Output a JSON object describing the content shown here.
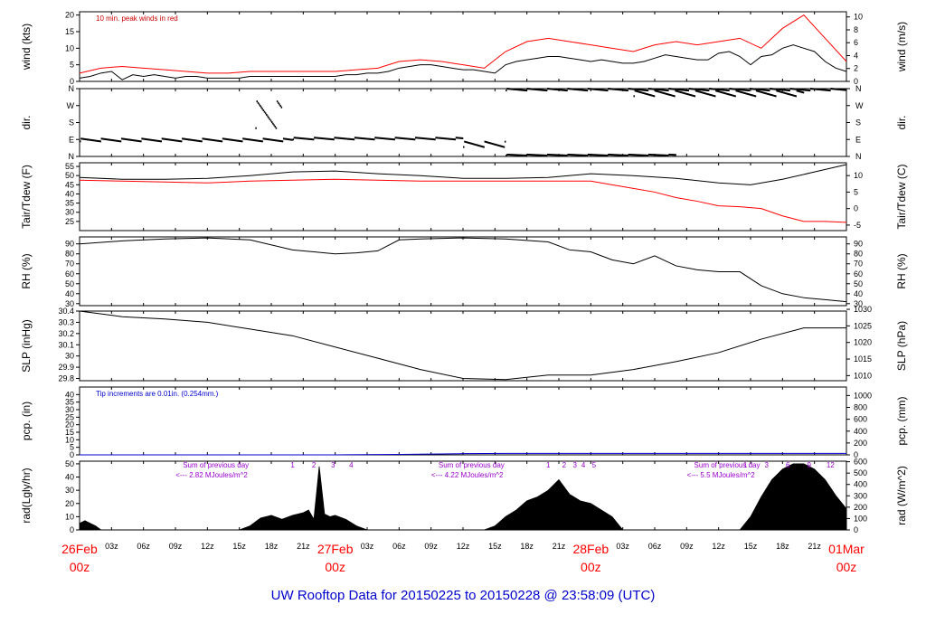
{
  "title": "UW Rooftop Data for 20150225  to  20150228 @ 23:58:09  (UTC)",
  "colors": {
    "frame": "#000000",
    "series_black": "#000000",
    "series_red": "#ff0000",
    "series_blue": "#0000cc",
    "annotation_red": "#cc0000",
    "annotation_purple": "#9900cc",
    "date_red": "#ff0000",
    "title_blue": "#0000cc"
  },
  "time_axis": {
    "range_hours": [
      0,
      72
    ],
    "hour_ticks": [
      {
        "h": 3,
        "label": "03z"
      },
      {
        "h": 6,
        "label": "06z"
      },
      {
        "h": 9,
        "label": "09z"
      },
      {
        "h": 12,
        "label": "12z"
      },
      {
        "h": 15,
        "label": "15z"
      },
      {
        "h": 18,
        "label": "18z"
      },
      {
        "h": 21,
        "label": "21z"
      },
      {
        "h": 27,
        "label": "03z"
      },
      {
        "h": 30,
        "label": "06z"
      },
      {
        "h": 33,
        "label": "09z"
      },
      {
        "h": 36,
        "label": "12z"
      },
      {
        "h": 39,
        "label": "15z"
      },
      {
        "h": 42,
        "label": "18z"
      },
      {
        "h": 45,
        "label": "21z"
      },
      {
        "h": 51,
        "label": "03z"
      },
      {
        "h": 54,
        "label": "06z"
      },
      {
        "h": 57,
        "label": "09z"
      },
      {
        "h": 60,
        "label": "12z"
      },
      {
        "h": 63,
        "label": "15z"
      },
      {
        "h": 66,
        "label": "18z"
      },
      {
        "h": 69,
        "label": "21z"
      }
    ],
    "day_labels": [
      {
        "h": 0,
        "date": "26Feb",
        "time": "00z"
      },
      {
        "h": 24,
        "date": "27Feb",
        "time": "00z"
      },
      {
        "h": 48,
        "date": "28Feb",
        "time": "00z"
      },
      {
        "h": 72,
        "date": "01Mar",
        "time": "00z"
      }
    ]
  },
  "chart_data": [
    {
      "panel": "wind",
      "type": "line",
      "ylabel_left": "wind (kts)",
      "ylabel_right": "wind (m/s)",
      "ylim": [
        0,
        21
      ],
      "ticks_left": [
        0,
        5,
        10,
        15,
        20
      ],
      "ticks_right": [
        0,
        2,
        4,
        6,
        8,
        10
      ],
      "right_scale_factor": 0.5144,
      "annotation": "10 min. peak winds in red",
      "series": [
        {
          "name": "",
          "color": "black",
          "x": [
            0,
            1,
            2,
            3,
            4,
            5,
            6,
            7,
            8,
            9,
            10,
            11,
            12,
            13,
            14,
            15,
            16,
            17,
            18,
            19,
            20,
            21,
            22,
            23,
            24,
            25,
            26,
            27,
            28,
            29,
            30,
            31,
            32,
            33,
            34,
            35,
            36,
            37,
            38,
            39,
            40,
            41,
            42,
            43,
            44,
            45,
            46,
            47,
            48,
            49,
            50,
            51,
            52,
            53,
            54,
            55,
            56,
            57,
            58,
            59,
            60,
            61,
            62,
            63,
            64,
            65,
            66,
            67,
            68,
            69,
            70,
            71,
            72
          ],
          "y": [
            1,
            1.5,
            2.5,
            3,
            0.5,
            2,
            1.5,
            2,
            1.5,
            1,
            1.5,
            1.5,
            1,
            1,
            1,
            1,
            1.5,
            1.5,
            1.5,
            1.5,
            1.5,
            1.5,
            1.5,
            1.5,
            1.5,
            2,
            2,
            2.5,
            2.5,
            3,
            4,
            4.5,
            5,
            5,
            4.5,
            4,
            3.5,
            3.5,
            3,
            2.5,
            5,
            6,
            6.5,
            7,
            7.5,
            7.5,
            7,
            6.5,
            6,
            6.5,
            6,
            5.5,
            5.5,
            6,
            7,
            8,
            7.5,
            7,
            6.5,
            6.5,
            8.5,
            9,
            7.5,
            5,
            7.5,
            8,
            10,
            11,
            10,
            9,
            6,
            4,
            3
          ]
        },
        {
          "name": "",
          "color": "red",
          "x": [
            0,
            2,
            4,
            6,
            8,
            10,
            12,
            14,
            16,
            18,
            20,
            22,
            24,
            26,
            28,
            30,
            32,
            34,
            36,
            38,
            40,
            42,
            44,
            46,
            48,
            50,
            52,
            54,
            56,
            58,
            60,
            62,
            64,
            66,
            68,
            70,
            72
          ],
          "y": [
            2.5,
            4,
            4.5,
            4,
            3.5,
            3,
            2.5,
            2.5,
            3,
            3,
            3,
            3,
            3,
            3.5,
            4,
            6,
            6.5,
            6,
            5,
            4,
            9,
            12,
            13,
            12,
            11,
            10,
            9,
            11,
            12,
            11,
            12,
            13,
            10,
            16,
            20,
            13,
            6
          ]
        }
      ]
    },
    {
      "panel": "dir",
      "type": "scatter",
      "ylabel_left": "dir.",
      "ylabel_right": "dir.",
      "ylim": [
        0,
        360
      ],
      "tick_labels": [
        "N",
        "E",
        "S",
        "W",
        "N"
      ],
      "tick_values": [
        0,
        90,
        180,
        270,
        360
      ],
      "series": [
        {
          "name": "",
          "color": "black",
          "segments": [
            {
              "x": [
                0,
                20
              ],
              "y": [
                80,
                95
              ]
            },
            {
              "x": [
                16.5,
                19
              ],
              "y": [
                150,
                300
              ]
            },
            {
              "x": [
                20,
                36
              ],
              "y": [
                90,
                100
              ]
            },
            {
              "x": [
                36,
                40
              ],
              "y": [
                50,
                80
              ]
            },
            {
              "x": [
                40,
                56
              ],
              "y": [
                5,
                10
              ]
            },
            {
              "x": [
                40,
                72
              ],
              "y": [
                350,
                360
              ]
            },
            {
              "x": [
                52,
                68
              ],
              "y": [
                320,
                350
              ]
            }
          ]
        }
      ]
    },
    {
      "panel": "temp",
      "type": "line",
      "ylabel_left": "Tair/Tdew (F)",
      "ylabel_right": "Tair/Tdew (C)",
      "ylim": [
        20,
        57
      ],
      "ticks_left": [
        25,
        30,
        35,
        40,
        45,
        50,
        55
      ],
      "ticks_right": [
        -5,
        0,
        5,
        10
      ],
      "series": [
        {
          "name": "",
          "color": "black",
          "x": [
            0,
            4,
            8,
            12,
            16,
            20,
            24,
            28,
            32,
            36,
            40,
            44,
            48,
            52,
            56,
            60,
            63,
            66,
            69,
            72
          ],
          "y": [
            49,
            48,
            48,
            48.5,
            50,
            52,
            52.5,
            51,
            50,
            48.5,
            48.5,
            49,
            51,
            50,
            48.5,
            46,
            45,
            48,
            52,
            56
          ]
        },
        {
          "name": "",
          "color": "red",
          "x": [
            0,
            4,
            8,
            12,
            16,
            20,
            24,
            28,
            32,
            36,
            40,
            44,
            48,
            50,
            52,
            54,
            56,
            58,
            60,
            62,
            64,
            66,
            68,
            70,
            72
          ],
          "y": [
            47.5,
            47,
            46.5,
            46,
            47,
            47.5,
            48,
            47.5,
            47,
            47,
            47,
            47,
            47,
            45,
            43,
            41,
            38,
            36,
            33.5,
            33,
            32,
            28,
            25,
            25,
            24.5
          ]
        }
      ]
    },
    {
      "panel": "rh",
      "type": "line",
      "ylabel_left": "RH (%)",
      "ylabel_right": "RH (%)",
      "ylim": [
        28,
        97
      ],
      "ticks_left": [
        30,
        40,
        50,
        60,
        70,
        80,
        90
      ],
      "ticks_right": [
        30,
        40,
        50,
        60,
        70,
        80,
        90
      ],
      "series": [
        {
          "name": "",
          "color": "black",
          "x": [
            0,
            4,
            8,
            12,
            16,
            20,
            22,
            24,
            26,
            28,
            30,
            32,
            36,
            40,
            44,
            46,
            48,
            50,
            52,
            54,
            56,
            58,
            60,
            62,
            64,
            66,
            68,
            70,
            72
          ],
          "y": [
            90,
            93,
            95,
            96,
            94,
            84,
            82,
            80,
            81,
            83,
            94,
            95,
            96,
            95,
            92,
            84,
            82,
            74,
            70,
            78,
            68,
            64,
            62,
            62,
            48,
            40,
            36,
            34,
            32
          ]
        }
      ]
    },
    {
      "panel": "slp",
      "type": "line",
      "ylabel_left": "SLP (inHg)",
      "ylabel_right": "SLP (hPa)",
      "ylim": [
        29.78,
        30.4
      ],
      "ticks_left": [
        29.8,
        29.9,
        30.0,
        30.1,
        30.2,
        30.3,
        30.4
      ],
      "ticks_right": [
        1010,
        1015,
        1020,
        1025,
        1030
      ],
      "series": [
        {
          "name": "",
          "color": "black",
          "x": [
            0,
            4,
            8,
            12,
            16,
            20,
            24,
            28,
            32,
            36,
            40,
            44,
            48,
            52,
            56,
            60,
            64,
            68,
            72
          ],
          "y": [
            30.4,
            30.35,
            30.33,
            30.3,
            30.24,
            30.18,
            30.08,
            29.98,
            29.88,
            29.8,
            29.79,
            29.83,
            29.83,
            29.88,
            29.95,
            30.03,
            30.15,
            30.25,
            30.25
          ]
        }
      ]
    },
    {
      "panel": "pcp",
      "type": "line",
      "ylabel_left": "pcp. (in)",
      "ylabel_right": "pcp. (mm)",
      "ylim": [
        0,
        45
      ],
      "ticks_left": [
        0,
        5,
        10,
        15,
        20,
        25,
        30,
        35,
        40
      ],
      "ticks_right": [
        0,
        200,
        400,
        600,
        800,
        1000
      ],
      "annotation": "Tip increments are 0.01in. (0.254mm.)",
      "series": [
        {
          "name": "",
          "color": "blue",
          "x": [
            0,
            24,
            30,
            36,
            40,
            48,
            72
          ],
          "y": [
            0,
            0,
            0.3,
            0.8,
            1.0,
            1.0,
            1.0
          ]
        }
      ]
    },
    {
      "panel": "rad",
      "type": "area",
      "ylabel_left": "rad(Lgly/hr)",
      "ylabel_right": "rad (W/m^2)",
      "ylim": [
        0,
        52
      ],
      "ticks_left": [
        0,
        10,
        20,
        30,
        40,
        50
      ],
      "ticks_right": [
        0,
        100,
        200,
        300,
        400,
        500,
        600
      ],
      "series": [
        {
          "name": "",
          "color": "black",
          "x": [
            0,
            0.5,
            1,
            1.5,
            2,
            15,
            16,
            17,
            18,
            19,
            20,
            21,
            21.5,
            22,
            22.5,
            23,
            23.5,
            24,
            25,
            26,
            27,
            38,
            39,
            40,
            41,
            42,
            43,
            44,
            45,
            46,
            47,
            48,
            49,
            50,
            51,
            62,
            63,
            64,
            65,
            66,
            67,
            68,
            69,
            70,
            71,
            72
          ],
          "y": [
            5,
            7,
            5,
            3,
            0,
            0,
            3,
            9,
            11,
            8,
            11,
            13,
            15,
            8,
            48,
            12,
            10,
            11,
            8,
            3,
            0,
            0,
            3,
            10,
            15,
            22,
            25,
            30,
            38,
            27,
            22,
            20,
            15,
            10,
            0,
            0,
            10,
            25,
            38,
            46,
            50,
            50,
            46,
            38,
            26,
            16
          ]
        }
      ],
      "day_summaries": [
        {
          "h": 8,
          "line1": "Sum of previous day",
          "line2": "<--- 2.82 MJoules/m^2",
          "markers": [
            "1",
            "2",
            "3",
            "4"
          ],
          "marker_hours": [
            20,
            22,
            23.8,
            25.5
          ]
        },
        {
          "h": 32,
          "line1": "Sum of previous day",
          "line2": "<--- 4.22 MJoules/m^2",
          "markers": [
            "1",
            "2",
            "3",
            "4",
            "5"
          ],
          "marker_hours": [
            44,
            45.5,
            46.5,
            47.3,
            48.3
          ]
        },
        {
          "h": 56,
          "line1": "Sum of previous day",
          "line2": "<--- 5.5 MJoules/m^2",
          "markers": [
            "1",
            "3",
            "6",
            "9",
            "12"
          ],
          "marker_hours": [
            62.5,
            64.5,
            66.5,
            68.5,
            70.5
          ]
        }
      ]
    }
  ]
}
